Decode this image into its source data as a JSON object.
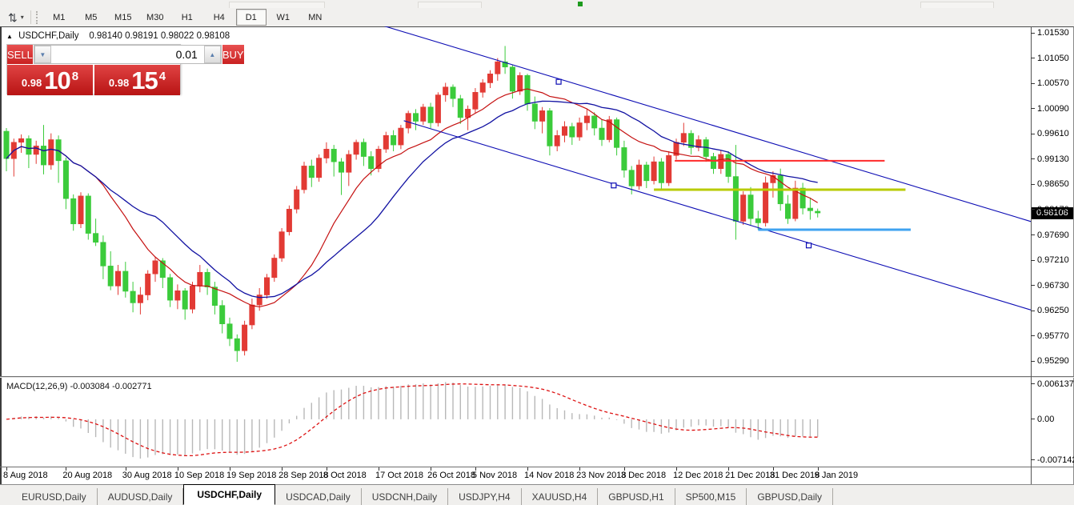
{
  "toolbar": {
    "chart_type_icon": "order-arrows-icon",
    "dropdown_icon": "chevron-down-icon",
    "timeframes": [
      "M1",
      "M5",
      "M15",
      "M30",
      "H1",
      "H4",
      "D1",
      "W1",
      "MN"
    ],
    "active_timeframe": "D1"
  },
  "chart": {
    "collapse_icon": "up-triangle-icon",
    "title_symbol": "USDCHF,Daily",
    "title_ohlc": "0.98140 0.98191 0.98022 0.98108"
  },
  "trade_panel": {
    "sell_label": "SELL",
    "buy_label": "BUY",
    "volume": "0.01",
    "decrease_icon": "down-triangle-icon",
    "increase_icon": "up-triangle-icon",
    "sell_price": {
      "prefix": "0.98",
      "big": "10",
      "sup": "8"
    },
    "buy_price": {
      "prefix": "0.98",
      "big": "15",
      "sup": "4"
    }
  },
  "price_tag": "0.98108",
  "indicator": {
    "label": "MACD(12,26,9) -0.003084 -0.002771",
    "y_ticks": [
      "0.006137",
      "0.00",
      "-0.007142"
    ]
  },
  "tabs": {
    "items": [
      "EURUSD,Daily",
      "AUDUSD,Daily",
      "USDCHF,Daily",
      "USDCAD,Daily",
      "USDCNH,Daily",
      "USDJPY,H4",
      "XAUUSD,H4",
      "GBPUSD,H1",
      "SP500,M15",
      "GBPUSD,Daily"
    ],
    "active": "USDCHF,Daily"
  },
  "chart_data": {
    "type": "candlestick",
    "symbol": "USDCHF",
    "timeframe": "Daily",
    "bid": 0.98108,
    "ask": 0.98154,
    "current_price": 0.98108,
    "style": {
      "up_color": "#e23a34",
      "down_color": "#3bcb3b",
      "background": "#ffffff"
    },
    "y_axis": {
      "ticks": [
        "1.01530",
        "1.01050",
        "1.00570",
        "1.00090",
        "0.99610",
        "0.99130",
        "0.98650",
        "0.98170",
        "0.97690",
        "0.97210",
        "0.96730",
        "0.96250",
        "0.95770",
        "0.95290"
      ]
    },
    "x_axis": {
      "labels": [
        {
          "i": 0,
          "label": "8 Aug 2018"
        },
        {
          "i": 8,
          "label": "20 Aug 2018"
        },
        {
          "i": 16,
          "label": "30 Aug 2018"
        },
        {
          "i": 23,
          "label": "10 Sep 2018"
        },
        {
          "i": 30,
          "label": "19 Sep 2018"
        },
        {
          "i": 37,
          "label": "28 Sep 2018"
        },
        {
          "i": 43,
          "label": "8 Oct 2018"
        },
        {
          "i": 50,
          "label": "17 Oct 2018"
        },
        {
          "i": 57,
          "label": "26 Oct 2018"
        },
        {
          "i": 63,
          "label": "5 Nov 2018"
        },
        {
          "i": 70,
          "label": "14 Nov 2018"
        },
        {
          "i": 77,
          "label": "23 Nov 2018"
        },
        {
          "i": 83,
          "label": "3 Dec 2018"
        },
        {
          "i": 90,
          "label": "12 Dec 2018"
        },
        {
          "i": 97,
          "label": "21 Dec 2018"
        },
        {
          "i": 103,
          "label": "31 Dec 2018"
        },
        {
          "i": 109,
          "label": "9 Jan 2019"
        }
      ]
    },
    "ohlc": [
      [
        0.9966,
        0.9972,
        0.989,
        0.9914
      ],
      [
        0.9914,
        0.9952,
        0.988,
        0.9945
      ],
      [
        0.9945,
        0.996,
        0.9925,
        0.9952
      ],
      [
        0.9952,
        0.9958,
        0.9896,
        0.9922
      ],
      [
        0.9922,
        0.9948,
        0.9904,
        0.9938
      ],
      [
        0.9938,
        0.9978,
        0.9884,
        0.9902
      ],
      [
        0.9902,
        0.9962,
        0.9893,
        0.995
      ],
      [
        0.995,
        0.9958,
        0.9868,
        0.991
      ],
      [
        0.991,
        0.9916,
        0.9818,
        0.9838
      ],
      [
        0.9838,
        0.9846,
        0.9777,
        0.979
      ],
      [
        0.979,
        0.985,
        0.9782,
        0.9843
      ],
      [
        0.9843,
        0.9848,
        0.976,
        0.9772
      ],
      [
        0.9772,
        0.98,
        0.9748,
        0.9755
      ],
      [
        0.9755,
        0.9768,
        0.9685,
        0.971
      ],
      [
        0.971,
        0.9738,
        0.9664,
        0.9672
      ],
      [
        0.9672,
        0.9712,
        0.9655,
        0.97
      ],
      [
        0.97,
        0.9718,
        0.965,
        0.9662
      ],
      [
        0.9662,
        0.968,
        0.9622,
        0.964
      ],
      [
        0.964,
        0.967,
        0.9618,
        0.9655
      ],
      [
        0.9655,
        0.9702,
        0.9645,
        0.9695
      ],
      [
        0.9695,
        0.9728,
        0.968,
        0.972
      ],
      [
        0.972,
        0.9725,
        0.9668,
        0.9688
      ],
      [
        0.9688,
        0.9695,
        0.9632,
        0.9645
      ],
      [
        0.9645,
        0.9675,
        0.9628,
        0.9663
      ],
      [
        0.9663,
        0.9668,
        0.9608,
        0.9628
      ],
      [
        0.9628,
        0.968,
        0.962,
        0.9672
      ],
      [
        0.9672,
        0.9712,
        0.966,
        0.9698
      ],
      [
        0.9698,
        0.9705,
        0.9655,
        0.967
      ],
      [
        0.967,
        0.968,
        0.9618,
        0.9635
      ],
      [
        0.9635,
        0.9645,
        0.9582,
        0.96
      ],
      [
        0.96,
        0.9612,
        0.9558,
        0.9572
      ],
      [
        0.9572,
        0.958,
        0.9528,
        0.9549
      ],
      [
        0.9549,
        0.9606,
        0.954,
        0.9598
      ],
      [
        0.9598,
        0.9648,
        0.959,
        0.9636
      ],
      [
        0.9636,
        0.9668,
        0.9625,
        0.9655
      ],
      [
        0.9655,
        0.9695,
        0.9648,
        0.9688
      ],
      [
        0.9688,
        0.9732,
        0.968,
        0.9725
      ],
      [
        0.9725,
        0.9782,
        0.9718,
        0.9775
      ],
      [
        0.9775,
        0.9825,
        0.9768,
        0.9818
      ],
      [
        0.9818,
        0.9862,
        0.981,
        0.9855
      ],
      [
        0.9855,
        0.9908,
        0.9848,
        0.99
      ],
      [
        0.99,
        0.9912,
        0.986,
        0.9878
      ],
      [
        0.9878,
        0.9922,
        0.987,
        0.9915
      ],
      [
        0.9915,
        0.9945,
        0.9905,
        0.9932
      ],
      [
        0.9932,
        0.994,
        0.988,
        0.9908
      ],
      [
        0.9908,
        0.9915,
        0.9845,
        0.9888
      ],
      [
        0.9888,
        0.993,
        0.9862,
        0.9922
      ],
      [
        0.9922,
        0.995,
        0.9912,
        0.9945
      ],
      [
        0.9945,
        0.9952,
        0.99,
        0.9918
      ],
      [
        0.9918,
        0.9928,
        0.9882,
        0.9895
      ],
      [
        0.9895,
        0.9938,
        0.9888,
        0.9932
      ],
      [
        0.9932,
        0.9965,
        0.9925,
        0.9958
      ],
      [
        0.9958,
        0.9968,
        0.9928,
        0.994
      ],
      [
        0.994,
        0.9978,
        0.9932,
        0.9972
      ],
      [
        0.9972,
        1.0005,
        0.9962,
        1.0
      ],
      [
        1.0,
        1.0008,
        0.9968,
        0.9985
      ],
      [
        0.9985,
        1.0018,
        0.9978,
        1.0012
      ],
      [
        1.0012,
        1.002,
        0.9972,
        0.9982
      ],
      [
        0.9982,
        1.004,
        0.9975,
        1.0035
      ],
      [
        1.0035,
        1.0058,
        1.0022,
        1.005
      ],
      [
        1.005,
        1.0055,
        1.0012,
        1.0028
      ],
      [
        1.0028,
        1.0035,
        0.998,
        0.9992
      ],
      [
        0.9992,
        1.0015,
        0.9968,
        1.0008
      ],
      [
        1.0008,
        1.0048,
        1.0,
        1.004
      ],
      [
        1.004,
        1.0065,
        1.003,
        1.0058
      ],
      [
        1.0058,
        1.0082,
        1.0048,
        1.0075
      ],
      [
        1.0075,
        1.0105,
        1.0062,
        1.0098
      ],
      [
        1.0098,
        1.0128,
        1.0075,
        1.0088
      ],
      [
        1.0088,
        1.0092,
        1.0028,
        1.0042
      ],
      [
        1.0042,
        1.0078,
        1.0035,
        1.0072
      ],
      [
        1.0072,
        1.0075,
        1.0005,
        1.0018
      ],
      [
        1.0018,
        1.0032,
        0.997,
        0.9985
      ],
      [
        0.9985,
        1.0012,
        0.9962,
        1.0005
      ],
      [
        1.0005,
        1.001,
        0.992,
        0.9938
      ],
      [
        0.9938,
        0.9968,
        0.9928,
        0.9958
      ],
      [
        0.9958,
        0.9985,
        0.9945,
        0.9975
      ],
      [
        0.9975,
        0.9982,
        0.994,
        0.9955
      ],
      [
        0.9955,
        0.9992,
        0.9948,
        0.9982
      ],
      [
        0.9982,
        1.0008,
        0.9968,
        0.9995
      ],
      [
        0.9995,
        1.0002,
        0.9958,
        0.9972
      ],
      [
        0.9972,
        0.9988,
        0.9938,
        0.995
      ],
      [
        0.995,
        0.9995,
        0.9945,
        0.9988
      ],
      [
        0.9988,
        0.9992,
        0.992,
        0.9935
      ],
      [
        0.9935,
        0.9948,
        0.9878,
        0.9892
      ],
      [
        0.9892,
        0.99,
        0.9846,
        0.9862
      ],
      [
        0.9862,
        0.9912,
        0.9855,
        0.9902
      ],
      [
        0.9902,
        0.9908,
        0.9858,
        0.9872
      ],
      [
        0.9872,
        0.9918,
        0.9865,
        0.9908
      ],
      [
        0.9908,
        0.9915,
        0.9855,
        0.9868
      ],
      [
        0.9868,
        0.9928,
        0.9862,
        0.992
      ],
      [
        0.992,
        0.9952,
        0.9912,
        0.9945
      ],
      [
        0.9945,
        0.9982,
        0.9938,
        0.9962
      ],
      [
        0.9962,
        0.9968,
        0.9922,
        0.9935
      ],
      [
        0.9935,
        0.9958,
        0.9928,
        0.995
      ],
      [
        0.995,
        0.9955,
        0.9908,
        0.9918
      ],
      [
        0.9918,
        0.9925,
        0.9885,
        0.9895
      ],
      [
        0.9895,
        0.993,
        0.9885,
        0.9922
      ],
      [
        0.9922,
        0.9928,
        0.9868,
        0.988
      ],
      [
        0.988,
        0.994,
        0.976,
        0.9795
      ],
      [
        0.9795,
        0.9852,
        0.9788,
        0.9845
      ],
      [
        0.9845,
        0.986,
        0.9788,
        0.98
      ],
      [
        0.98,
        0.9815,
        0.9779,
        0.9792
      ],
      [
        0.9792,
        0.988,
        0.9785,
        0.9868
      ],
      [
        0.9868,
        0.989,
        0.984,
        0.9882
      ],
      [
        0.9882,
        0.9895,
        0.9815,
        0.9828
      ],
      [
        0.9828,
        0.9845,
        0.979,
        0.98
      ],
      [
        0.98,
        0.9872,
        0.9795,
        0.9858
      ],
      [
        0.9858,
        0.9868,
        0.9808,
        0.982
      ],
      [
        0.982,
        0.984,
        0.9798,
        0.9815
      ],
      [
        0.9814,
        0.98191,
        0.98022,
        0.98108
      ]
    ],
    "overlays": {
      "ma_fast": {
        "period": 13,
        "color": "#c51111"
      },
      "ma_slow": {
        "period": 21,
        "color": "#1212a2"
      },
      "channel": {
        "color": "#0c0cb4",
        "upper": [
          [
            50.5,
            1.0167
          ],
          [
            138,
            0.9793
          ]
        ],
        "lower": [
          [
            53.4,
            0.9986
          ],
          [
            138,
            0.9625
          ]
        ],
        "handles": [
          [
            74.2,
            1.006
          ],
          [
            81.6,
            0.9863
          ],
          [
            107.8,
            0.9749
          ]
        ]
      },
      "hlines": [
        {
          "price": 0.991,
          "i1": 89.8,
          "i2": 118.0,
          "color": "#ff2a2a",
          "width": 2
        },
        {
          "price": 0.9855,
          "i1": 87.0,
          "i2": 120.8,
          "color": "#b8cb00",
          "width": 3
        },
        {
          "price": 0.9779,
          "i1": 101.0,
          "i2": 121.5,
          "color": "#3fa3f0",
          "width": 3
        }
      ]
    },
    "macd": {
      "fast": 12,
      "slow": 26,
      "signal": 9,
      "current_values": [
        "-0.003084",
        "-0.002771"
      ],
      "range": [
        -0.007142,
        0.006137
      ],
      "histogram_color": "#b8b8b8",
      "signal_color": "#dd1111"
    }
  }
}
